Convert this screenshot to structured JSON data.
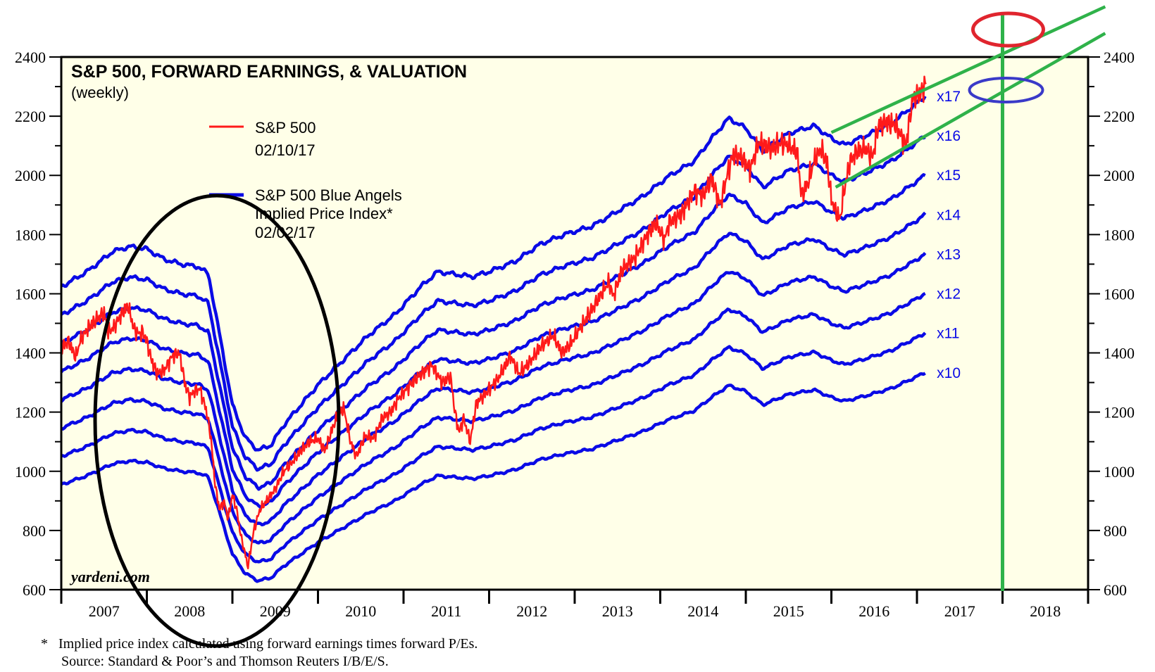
{
  "chart_data": {
    "type": "line",
    "title": "S&P 500, FORWARD EARNINGS, & VALUATION",
    "subtitle": "(weekly)",
    "watermark": "yardeni.com",
    "xlabel": "",
    "ylabel": "",
    "x_unit": "year",
    "xlim": [
      2007.0,
      2019.0
    ],
    "ylim": [
      600,
      2400
    ],
    "y_ticks": [
      600,
      800,
      1000,
      1200,
      1400,
      1600,
      1800,
      2000,
      2200,
      2400
    ],
    "y_tick_labels": [
      "600",
      "800",
      "1000",
      "1200",
      "1400",
      "1600",
      "1800",
      "2000",
      "2200",
      "2400"
    ],
    "x_tick_labels": [
      "2007",
      "2008",
      "2009",
      "2010",
      "2011",
      "2012",
      "2013",
      "2014",
      "2015",
      "2016",
      "2017",
      "2018"
    ],
    "grid": false,
    "legend": {
      "placement": "top-left",
      "entries": [
        {
          "label": "S&P 500",
          "sublabel": "02/10/17",
          "color": "#ff1a1a"
        },
        {
          "label": "S&P 500 Blue Angels",
          "label2": "Implied Price Index*",
          "sublabel": "02/02/17",
          "color": "#0a0ae6"
        }
      ]
    },
    "footnotes": [
      "*   Implied price index calculated using forward earnings times forward P/Es.",
      "Source: Standard & Poor’s and Thomson Reuters I/B/E/S."
    ],
    "colors": {
      "background": "#ffffe8",
      "sp500": "#ff1a1a",
      "blue_angels": "#0a0ae6",
      "annotation_green": "#2fb24a",
      "annotation_red": "#e0252e",
      "annotation_blue": "#3a3ac8",
      "annotation_black": "#000000"
    },
    "forward_earnings": {
      "x": [
        2007.0,
        2007.3,
        2007.6,
        2007.8,
        2008.0,
        2008.2,
        2008.4,
        2008.6,
        2008.72,
        2008.85,
        2009.0,
        2009.15,
        2009.3,
        2009.45,
        2009.6,
        2009.8,
        2010.0,
        2010.3,
        2010.6,
        2010.9,
        2011.2,
        2011.4,
        2011.6,
        2011.8,
        2012.0,
        2012.3,
        2012.6,
        2012.9,
        2013.2,
        2013.5,
        2013.8,
        2014.1,
        2014.4,
        2014.6,
        2014.8,
        2015.0,
        2015.2,
        2015.5,
        2015.8,
        2016.0,
        2016.15,
        2016.4,
        2016.7,
        2017.0,
        2017.1
      ],
      "values": [
        95.5,
        98.5,
        102.5,
        103.5,
        103.0,
        101.0,
        100.0,
        99.5,
        98.0,
        86.0,
        72.0,
        65.5,
        63.0,
        64.0,
        68.0,
        72.0,
        76.0,
        81.0,
        86.0,
        90.0,
        95.5,
        98.5,
        98.0,
        97.5,
        98.5,
        100.5,
        104.0,
        106.0,
        107.5,
        110.5,
        113.5,
        117.5,
        120.5,
        125.0,
        129.0,
        127.0,
        122.5,
        126.0,
        127.5,
        125.0,
        123.7,
        125.5,
        128.0,
        132.0,
        133.5
      ]
    },
    "series": [
      {
        "name": "S&P 500",
        "type": "weekly",
        "x": [
          2007.0,
          2007.08,
          2007.17,
          2007.22,
          2007.3,
          2007.4,
          2007.5,
          2007.55,
          2007.62,
          2007.7,
          2007.78,
          2007.85,
          2007.9,
          2007.95,
          2008.0,
          2008.05,
          2008.12,
          2008.2,
          2008.3,
          2008.38,
          2008.45,
          2008.5,
          2008.55,
          2008.62,
          2008.7,
          2008.75,
          2008.8,
          2008.85,
          2008.9,
          2008.95,
          2009.0,
          2009.05,
          2009.1,
          2009.15,
          2009.18,
          2009.25,
          2009.32,
          2009.4,
          2009.5,
          2009.6,
          2009.7,
          2009.8,
          2009.9,
          2010.0,
          2010.08,
          2010.2,
          2010.3,
          2010.38,
          2010.45,
          2010.55,
          2010.65,
          2010.75,
          2010.85,
          2010.95,
          2011.1,
          2011.25,
          2011.33,
          2011.45,
          2011.55,
          2011.6,
          2011.65,
          2011.7,
          2011.78,
          2011.85,
          2011.95,
          2012.1,
          2012.25,
          2012.35,
          2012.45,
          2012.6,
          2012.75,
          2012.85,
          2012.95,
          2013.1,
          2013.25,
          2013.4,
          2013.45,
          2013.55,
          2013.7,
          2013.85,
          2013.95,
          2014.05,
          2014.1,
          2014.25,
          2014.4,
          2014.5,
          2014.6,
          2014.7,
          2014.78,
          2014.85,
          2014.95,
          2015.05,
          2015.15,
          2015.3,
          2015.4,
          2015.5,
          2015.6,
          2015.65,
          2015.72,
          2015.8,
          2015.88,
          2015.95,
          2016.0,
          2016.05,
          2016.1,
          2016.15,
          2016.22,
          2016.3,
          2016.4,
          2016.48,
          2016.55,
          2016.65,
          2016.75,
          2016.82,
          2016.87,
          2016.95,
          2017.05,
          2017.11
        ],
        "values": [
          1415,
          1440,
          1385,
          1440,
          1480,
          1510,
          1535,
          1470,
          1490,
          1530,
          1560,
          1480,
          1465,
          1470,
          1440,
          1380,
          1330,
          1340,
          1390,
          1400,
          1290,
          1250,
          1270,
          1280,
          1200,
          1110,
          950,
          870,
          900,
          840,
          920,
          870,
          780,
          720,
          676,
          800,
          870,
          900,
          940,
          1000,
          1030,
          1070,
          1100,
          1110,
          1070,
          1170,
          1215,
          1100,
          1050,
          1120,
          1110,
          1180,
          1200,
          1250,
          1300,
          1340,
          1360,
          1300,
          1320,
          1200,
          1130,
          1180,
          1100,
          1230,
          1260,
          1310,
          1390,
          1330,
          1360,
          1420,
          1460,
          1400,
          1430,
          1500,
          1570,
          1640,
          1590,
          1680,
          1720,
          1800,
          1840,
          1780,
          1840,
          1870,
          1950,
          1930,
          1990,
          1900,
          2000,
          2070,
          2060,
          2020,
          2110,
          2090,
          2110,
          2100,
          2080,
          1930,
          1970,
          2050,
          2090,
          2040,
          1920,
          1880,
          1850,
          1950,
          2050,
          2080,
          2090,
          2060,
          2170,
          2180,
          2170,
          2130,
          2100,
          2260,
          2280,
          2316
        ]
      },
      {
        "name": "x17",
        "multiple": 17
      },
      {
        "name": "x16",
        "multiple": 16
      },
      {
        "name": "x15",
        "multiple": 15
      },
      {
        "name": "x14",
        "multiple": 14
      },
      {
        "name": "x13",
        "multiple": 13
      },
      {
        "name": "x12",
        "multiple": 12
      },
      {
        "name": "x11",
        "multiple": 11
      },
      {
        "name": "x10",
        "multiple": 10
      }
    ],
    "annotations": {
      "vertical_line_year": 2018.0,
      "trend_upper": {
        "from": [
          2016.0,
          2145
        ],
        "to": [
          2019.2,
          2570
        ]
      },
      "trend_lower": {
        "from": [
          2016.05,
          1960
        ],
        "to": [
          2019.2,
          2480
        ]
      },
      "red_ellipse_center": [
        2018.0,
        2495
      ],
      "blue_ellipse_center": [
        2018.0,
        2295
      ],
      "black_ellipse_center": [
        2008.85,
        1180
      ],
      "label": "hand-drawn trend channel and circled 2008-2009 crash"
    }
  }
}
